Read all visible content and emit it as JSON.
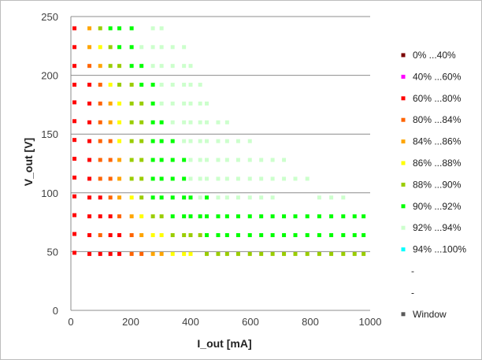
{
  "chart_data": {
    "type": "scatter",
    "xlabel": "I_out [mA]",
    "ylabel": "V_out [V]",
    "xlim": [
      0,
      1000
    ],
    "ylim": [
      0,
      250
    ],
    "xticks": [
      "0",
      "200",
      "400",
      "600",
      "800",
      "1000"
    ],
    "yticks": [
      "0",
      "50",
      "100",
      "150",
      "200",
      "250"
    ],
    "grid": "horizontal",
    "legend_position": "right",
    "legend": [
      {
        "label": "0% ...40%",
        "color": "#7b0000"
      },
      {
        "label": "40% ...60%",
        "color": "#ff00ff"
      },
      {
        "label": "60% ...80%",
        "color": "#ff0000"
      },
      {
        "label": "80% ...84%",
        "color": "#ff6400"
      },
      {
        "label": "84% ...86%",
        "color": "#ffa500"
      },
      {
        "label": "86% ...88%",
        "color": "#ffff00"
      },
      {
        "label": "88% ...90%",
        "color": "#9acd00"
      },
      {
        "label": "90% ...92%",
        "color": "#00ff00"
      },
      {
        "label": "92% ...94%",
        "color": "#ccffcc"
      },
      {
        "label": "94% ...100%",
        "color": "#00ffff"
      },
      {
        "label": "-",
        "color": ""
      },
      {
        "label": "-",
        "color": ""
      },
      {
        "label": "Window",
        "color": "#595959"
      }
    ],
    "series": [
      {
        "class": 2,
        "points": [
          [
            12,
            49
          ],
          [
            12,
            65
          ],
          [
            12,
            81
          ],
          [
            12,
            97
          ],
          [
            12,
            113
          ],
          [
            12,
            129
          ],
          [
            12,
            145
          ],
          [
            12,
            161
          ],
          [
            12,
            177
          ],
          [
            12,
            192
          ],
          [
            12,
            208
          ],
          [
            12,
            224
          ],
          [
            12,
            240
          ],
          [
            62,
            48
          ],
          [
            62,
            64
          ],
          [
            62,
            80
          ],
          [
            62,
            96
          ],
          [
            62,
            112
          ],
          [
            62,
            128
          ],
          [
            62,
            144
          ],
          [
            62,
            160
          ],
          [
            62,
            176
          ],
          [
            62,
            192
          ],
          [
            98,
            48
          ],
          [
            98,
            80
          ],
          [
            98,
            96
          ],
          [
            132,
            48
          ],
          [
            132,
            64
          ],
          [
            132,
            80
          ],
          [
            162,
            48
          ],
          [
            162,
            64
          ]
        ]
      },
      {
        "class": 3,
        "points": [
          [
            98,
            64
          ],
          [
            98,
            112
          ],
          [
            98,
            128
          ],
          [
            98,
            144
          ],
          [
            98,
            160
          ],
          [
            62,
            208
          ],
          [
            98,
            176
          ],
          [
            98,
            192
          ],
          [
            132,
            96
          ],
          [
            132,
            112
          ],
          [
            132,
            128
          ],
          [
            132,
            144
          ],
          [
            162,
            80
          ],
          [
            203,
            48
          ],
          [
            203,
            64
          ],
          [
            236,
            48
          ]
        ]
      },
      {
        "class": 4,
        "points": [
          [
            62,
            224
          ],
          [
            62,
            240
          ],
          [
            98,
            208
          ],
          [
            132,
            160
          ],
          [
            132,
            176
          ],
          [
            162,
            96
          ],
          [
            162,
            112
          ],
          [
            162,
            128
          ],
          [
            203,
            80
          ],
          [
            236,
            64
          ],
          [
            274,
            48
          ],
          [
            303,
            48
          ]
        ]
      },
      {
        "class": 5,
        "points": [
          [
            98,
            224
          ],
          [
            132,
            192
          ],
          [
            162,
            144
          ],
          [
            162,
            160
          ],
          [
            162,
            176
          ],
          [
            203,
            96
          ],
          [
            236,
            80
          ],
          [
            274,
            64
          ],
          [
            303,
            64
          ],
          [
            340,
            48
          ],
          [
            378,
            48
          ],
          [
            400,
            48
          ]
        ]
      },
      {
        "class": 6,
        "points": [
          [
            98,
            240
          ],
          [
            132,
            208
          ],
          [
            132,
            224
          ],
          [
            162,
            192
          ],
          [
            162,
            208
          ],
          [
            203,
            112
          ],
          [
            203,
            128
          ],
          [
            203,
            144
          ],
          [
            203,
            160
          ],
          [
            203,
            176
          ],
          [
            203,
            192
          ],
          [
            236,
            96
          ],
          [
            236,
            112
          ],
          [
            236,
            128
          ],
          [
            236,
            144
          ],
          [
            236,
            160
          ],
          [
            236,
            176
          ],
          [
            274,
            80
          ],
          [
            303,
            80
          ],
          [
            340,
            64
          ],
          [
            378,
            64
          ],
          [
            400,
            64
          ],
          [
            432,
            64
          ],
          [
            454,
            48
          ],
          [
            492,
            48
          ],
          [
            522,
            48
          ],
          [
            559,
            48
          ],
          [
            598,
            48
          ],
          [
            636,
            48
          ],
          [
            674,
            48
          ],
          [
            712,
            48
          ],
          [
            750,
            48
          ],
          [
            790,
            48
          ],
          [
            830,
            48
          ],
          [
            870,
            48
          ],
          [
            910,
            48
          ],
          [
            948,
            48
          ],
          [
            978,
            48
          ]
        ]
      },
      {
        "class": 7,
        "points": [
          [
            132,
            240
          ],
          [
            162,
            224
          ],
          [
            162,
            240
          ],
          [
            203,
            208
          ],
          [
            203,
            224
          ],
          [
            203,
            240
          ],
          [
            236,
            192
          ],
          [
            236,
            208
          ],
          [
            274,
            96
          ],
          [
            274,
            112
          ],
          [
            274,
            128
          ],
          [
            274,
            144
          ],
          [
            274,
            160
          ],
          [
            274,
            176
          ],
          [
            274,
            192
          ],
          [
            303,
            96
          ],
          [
            303,
            112
          ],
          [
            303,
            128
          ],
          [
            303,
            144
          ],
          [
            303,
            160
          ],
          [
            340,
            80
          ],
          [
            340,
            96
          ],
          [
            340,
            112
          ],
          [
            340,
            128
          ],
          [
            340,
            144
          ],
          [
            378,
            80
          ],
          [
            378,
            96
          ],
          [
            378,
            112
          ],
          [
            378,
            128
          ],
          [
            400,
            80
          ],
          [
            400,
            96
          ],
          [
            432,
            80
          ],
          [
            454,
            64
          ],
          [
            454,
            80
          ],
          [
            454,
            96
          ],
          [
            492,
            64
          ],
          [
            492,
            80
          ],
          [
            522,
            64
          ],
          [
            522,
            80
          ],
          [
            559,
            64
          ],
          [
            559,
            80
          ],
          [
            598,
            64
          ],
          [
            598,
            80
          ],
          [
            636,
            64
          ],
          [
            636,
            80
          ],
          [
            674,
            64
          ],
          [
            674,
            80
          ],
          [
            712,
            64
          ],
          [
            712,
            80
          ],
          [
            750,
            64
          ],
          [
            750,
            80
          ],
          [
            790,
            64
          ],
          [
            790,
            80
          ],
          [
            830,
            64
          ],
          [
            830,
            80
          ],
          [
            870,
            64
          ],
          [
            870,
            80
          ],
          [
            910,
            64
          ],
          [
            910,
            80
          ],
          [
            948,
            64
          ],
          [
            948,
            80
          ],
          [
            978,
            64
          ],
          [
            978,
            80
          ]
        ]
      },
      {
        "class": 8,
        "points": [
          [
            236,
            224
          ],
          [
            274,
            208
          ],
          [
            274,
            224
          ],
          [
            274,
            240
          ],
          [
            303,
            176
          ],
          [
            303,
            192
          ],
          [
            303,
            208
          ],
          [
            303,
            224
          ],
          [
            303,
            240
          ],
          [
            340,
            160
          ],
          [
            340,
            176
          ],
          [
            340,
            192
          ],
          [
            340,
            208
          ],
          [
            340,
            224
          ],
          [
            378,
            144
          ],
          [
            378,
            160
          ],
          [
            378,
            176
          ],
          [
            378,
            192
          ],
          [
            378,
            208
          ],
          [
            378,
            224
          ],
          [
            400,
            112
          ],
          [
            400,
            128
          ],
          [
            400,
            144
          ],
          [
            400,
            160
          ],
          [
            400,
            176
          ],
          [
            400,
            192
          ],
          [
            400,
            208
          ],
          [
            432,
            112
          ],
          [
            432,
            128
          ],
          [
            432,
            144
          ],
          [
            432,
            160
          ],
          [
            432,
            176
          ],
          [
            432,
            192
          ],
          [
            454,
            112
          ],
          [
            454,
            128
          ],
          [
            454,
            144
          ],
          [
            454,
            160
          ],
          [
            454,
            176
          ],
          [
            492,
            112
          ],
          [
            492,
            128
          ],
          [
            492,
            144
          ],
          [
            492,
            160
          ],
          [
            522,
            112
          ],
          [
            522,
            128
          ],
          [
            522,
            144
          ],
          [
            522,
            160
          ],
          [
            559,
            96
          ],
          [
            559,
            112
          ],
          [
            559,
            128
          ],
          [
            559,
            144
          ],
          [
            598,
            96
          ],
          [
            598,
            112
          ],
          [
            598,
            128
          ],
          [
            598,
            144
          ],
          [
            636,
            96
          ],
          [
            636,
            112
          ],
          [
            636,
            128
          ],
          [
            674,
            96
          ],
          [
            674,
            112
          ],
          [
            674,
            128
          ],
          [
            712,
            112
          ],
          [
            712,
            128
          ],
          [
            750,
            112
          ],
          [
            790,
            112
          ],
          [
            830,
            96
          ],
          [
            870,
            96
          ],
          [
            910,
            96
          ],
          [
            432,
            96
          ],
          [
            492,
            96
          ],
          [
            522,
            96
          ]
        ]
      }
    ]
  }
}
